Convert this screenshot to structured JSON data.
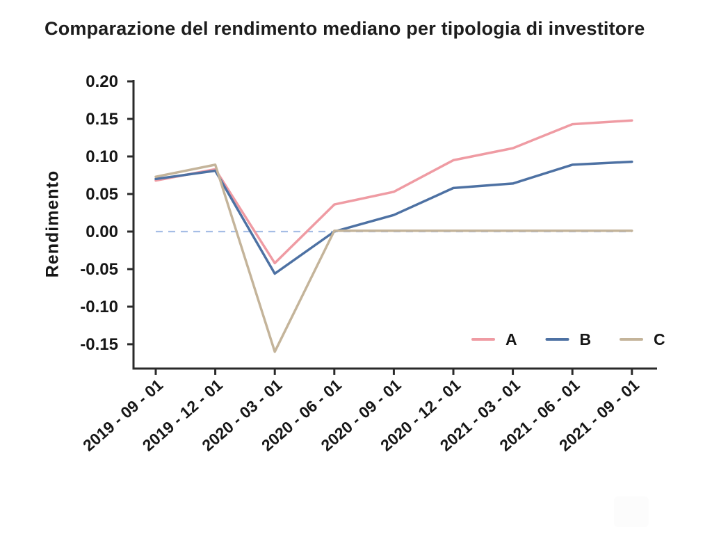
{
  "title": "Comparazione del rendimento mediano per tipologia di investitore",
  "chart_data": {
    "type": "line",
    "title": "Comparazione del rendimento mediano per tipologia di investitore",
    "xlabel": "",
    "ylabel": "Rendimento",
    "x_categories": [
      "2019 - 09 - 01",
      "2019 - 12 - 01",
      "2020 - 03 - 01",
      "2020 - 06 - 01",
      "2020 - 09 - 01",
      "2020 - 12 - 01",
      "2021 - 03 - 01",
      "2021 - 06 - 01",
      "2021 - 09 - 01"
    ],
    "series": [
      {
        "name": "A",
        "color": "#ef9ba3",
        "values": [
          0.068,
          0.083,
          -0.042,
          0.036,
          0.053,
          0.095,
          0.111,
          0.143,
          0.148
        ]
      },
      {
        "name": "B",
        "color": "#4d71a3",
        "values": [
          0.07,
          0.081,
          -0.056,
          0.0,
          0.022,
          0.058,
          0.064,
          0.089,
          0.093
        ]
      },
      {
        "name": "C",
        "color": "#c4b49a",
        "values": [
          0.073,
          0.089,
          -0.16,
          0.001,
          0.001,
          0.001,
          0.001,
          0.001,
          0.001
        ]
      }
    ],
    "yticks": [
      0.2,
      0.15,
      0.1,
      0.05,
      0.0,
      -0.05,
      -0.1,
      -0.15
    ],
    "ylim": [
      -0.18,
      0.2
    ],
    "grid": false,
    "legend_position": "lower right",
    "zero_line": {
      "value": 0.0,
      "style": "dashed",
      "color": "#a5bde5"
    },
    "axis_color": "#2a2a2a",
    "text_color": "#161616",
    "background_color": "#ffffff"
  }
}
